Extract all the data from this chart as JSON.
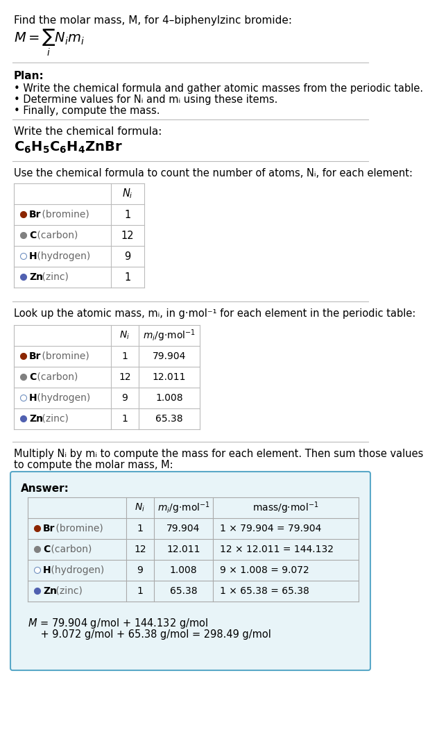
{
  "title": "Find the molar mass, M, for 4–biphenylzinc bromide:",
  "chemical_formula_label": "Write the chemical formula:",
  "plan_label": "Plan:",
  "plan_bullets": [
    "• Write the chemical formula and gather atomic masses from the periodic table.",
    "• Determine values for Nᵢ and mᵢ using these items.",
    "• Finally, compute the mass."
  ],
  "table1_label": "Use the chemical formula to count the number of atoms, Nᵢ, for each element:",
  "table2_label": "Look up the atomic mass, mᵢ, in g·mol⁻¹ for each element in the periodic table:",
  "table3_label": "Multiply Nᵢ by mᵢ to compute the mass for each element. Then sum those values\nto compute the molar mass, M:",
  "element_symbols": [
    "Br",
    "C",
    "H",
    "Zn"
  ],
  "element_names": [
    "(bromine)",
    "(carbon)",
    "(hydrogen)",
    "(zinc)"
  ],
  "dot_colors": [
    "#8B2500",
    "#808080",
    "#ffffff",
    "#5060B0"
  ],
  "dot_outline": [
    "#8B2500",
    "#808080",
    "#7090C0",
    "#5060B0"
  ],
  "N_i": [
    1,
    12,
    9,
    1
  ],
  "m_i": [
    "79.904",
    "12.011",
    "1.008",
    "65.38"
  ],
  "mass_expr": [
    "1 × 79.904 = 79.904",
    "12 × 12.011 = 144.132",
    "9 × 1.008 = 9.072",
    "1 × 65.38 = 65.38"
  ],
  "answer_box_color": "#e8f4f8",
  "answer_box_border": "#5aA8c8",
  "final_eq_line1": "M = 79.904 g/mol + 144.132 g/mol",
  "final_eq_line2": "    + 9.072 g/mol + 65.38 g/mol = 298.49 g/mol",
  "bg_color": "#ffffff",
  "text_color": "#000000",
  "line_color": "#bbbbbb"
}
